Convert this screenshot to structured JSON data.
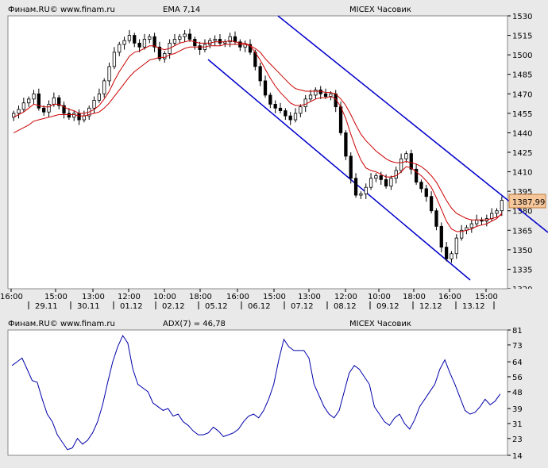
{
  "top_panel": {
    "source": "Финам.RU© www.finam.ru",
    "indicator": "EMA 7,14",
    "instrument": "MICEX Часовик",
    "price_badge": "1387,99"
  },
  "bottom_panel": {
    "source": "Финам.RU© www.finam.ru",
    "indicator": "ADX(7) = 46,78",
    "instrument": "MICEX Часовик"
  },
  "colors": {
    "background": "#e9e9e9",
    "plot": "#ffffff",
    "indicator_label": "#cc0000",
    "adx_label": "#0000cc",
    "ema_line": "#cc0000",
    "channel": "#0000cc",
    "adx_line": "#0000aa",
    "badge": "#f5c69a"
  },
  "chart_data": [
    {
      "type": "candlestick",
      "title": "MICEX Часовик",
      "y_ticks": [
        "1530",
        "1515",
        "1500",
        "1485",
        "1470",
        "1455",
        "1440",
        "1425",
        "1410",
        "1395",
        "1380",
        "1365",
        "1350",
        "1335",
        "1320"
      ],
      "ylim": [
        1320,
        1530
      ],
      "x_time_labels": [
        "16:00",
        "15:00",
        "13:00",
        "12:00",
        "10:00",
        "18:00",
        "16:00",
        "15:00",
        "13:00",
        "12:00",
        "10:00",
        "18:00",
        "16:00",
        "15:00"
      ],
      "x_date_labels": [
        "29.11",
        "30.11",
        "01.12",
        "02.12",
        "05.12",
        "06.12",
        "07.12",
        "08.12",
        "09.12",
        "12.12",
        "13.12"
      ],
      "last_price": 1387.99,
      "close": [
        1455,
        1458,
        1463,
        1466,
        1470,
        1459,
        1456,
        1462,
        1467,
        1461,
        1455,
        1452,
        1455,
        1450,
        1453,
        1459,
        1465,
        1470,
        1480,
        1491,
        1502,
        1508,
        1511,
        1515,
        1509,
        1506,
        1512,
        1514,
        1506,
        1497,
        1501,
        1509,
        1512,
        1514,
        1516,
        1512,
        1507,
        1504,
        1508,
        1511,
        1512,
        1509,
        1510,
        1514,
        1510,
        1506,
        1508,
        1502,
        1491,
        1480,
        1469,
        1462,
        1459,
        1457,
        1453,
        1450,
        1455,
        1460,
        1466,
        1469,
        1473,
        1470,
        1468,
        1470,
        1460,
        1440,
        1422,
        1405,
        1392,
        1393,
        1398,
        1405,
        1407,
        1404,
        1399,
        1405,
        1411,
        1420,
        1424,
        1412,
        1402,
        1397,
        1391,
        1380,
        1368,
        1352,
        1343,
        1347,
        1359,
        1365,
        1367,
        1370,
        1373,
        1372,
        1374,
        1378,
        1380,
        1388
      ],
      "ema_fast": [
        1452,
        1454,
        1456,
        1459,
        1462,
        1461,
        1460,
        1460,
        1462,
        1462,
        1460,
        1458,
        1457,
        1455,
        1455,
        1456,
        1458,
        1461,
        1466,
        1472,
        1480,
        1487,
        1493,
        1499,
        1502,
        1503,
        1505,
        1507,
        1507,
        1505,
        1504,
        1505,
        1507,
        1509,
        1510,
        1511,
        1510,
        1509,
        1509,
        1509,
        1510,
        1510,
        1510,
        1511,
        1510,
        1509,
        1509,
        1507,
        1502,
        1496,
        1489,
        1482,
        1476,
        1471,
        1467,
        1463,
        1461,
        1461,
        1462,
        1464,
        1466,
        1467,
        1467,
        1468,
        1466,
        1460,
        1451,
        1439,
        1428,
        1419,
        1413,
        1411,
        1410,
        1408,
        1406,
        1406,
        1407,
        1410,
        1414,
        1413,
        1410,
        1407,
        1403,
        1398,
        1390,
        1381,
        1372,
        1366,
        1364,
        1364,
        1365,
        1366,
        1368,
        1369,
        1370,
        1372,
        1374,
        1378
      ],
      "ema_slow": [
        1440,
        1442,
        1444,
        1446,
        1449,
        1450,
        1451,
        1452,
        1453,
        1454,
        1454,
        1454,
        1454,
        1453,
        1453,
        1454,
        1455,
        1456,
        1459,
        1463,
        1468,
        1473,
        1478,
        1483,
        1487,
        1490,
        1493,
        1496,
        1497,
        1498,
        1498,
        1500,
        1501,
        1503,
        1505,
        1506,
        1506,
        1506,
        1506,
        1507,
        1507,
        1507,
        1508,
        1508,
        1508,
        1508,
        1508,
        1507,
        1505,
        1502,
        1497,
        1493,
        1489,
        1485,
        1481,
        1477,
        1474,
        1473,
        1472,
        1472,
        1472,
        1472,
        1471,
        1471,
        1470,
        1466,
        1461,
        1454,
        1446,
        1439,
        1434,
        1430,
        1426,
        1423,
        1420,
        1418,
        1417,
        1417,
        1418,
        1417,
        1416,
        1414,
        1411,
        1407,
        1402,
        1395,
        1388,
        1382,
        1378,
        1376,
        1374,
        1373,
        1373,
        1373,
        1373,
        1374,
        1375,
        1377
      ]
    },
    {
      "type": "line",
      "title": "ADX(7) = 46,78",
      "y_ticks": [
        "81",
        "73",
        "64",
        "56",
        "48",
        "39",
        "31",
        "23",
        "14"
      ],
      "ylim": [
        14,
        81
      ],
      "series": [
        {
          "name": "ADX(7)",
          "values": [
            62,
            64,
            66,
            60,
            54,
            53,
            44,
            36,
            32,
            25,
            21,
            17,
            18,
            23,
            20,
            22,
            26,
            32,
            41,
            53,
            64,
            72,
            78,
            74,
            60,
            52,
            50,
            48,
            42,
            40,
            38,
            39,
            35,
            36,
            32,
            30,
            27,
            25,
            25,
            26,
            29,
            27,
            24,
            25,
            26,
            28,
            32,
            35,
            36,
            34,
            38,
            44,
            52,
            65,
            76,
            72,
            70,
            70,
            70,
            66,
            52,
            46,
            40,
            36,
            34,
            38,
            48,
            58,
            62,
            60,
            56,
            52,
            40,
            36,
            32,
            30,
            34,
            36,
            31,
            28,
            33,
            40,
            44,
            48,
            52,
            60,
            65,
            58,
            52,
            45,
            38,
            36,
            37,
            40,
            44,
            41,
            43,
            46.78
          ]
        }
      ]
    }
  ]
}
